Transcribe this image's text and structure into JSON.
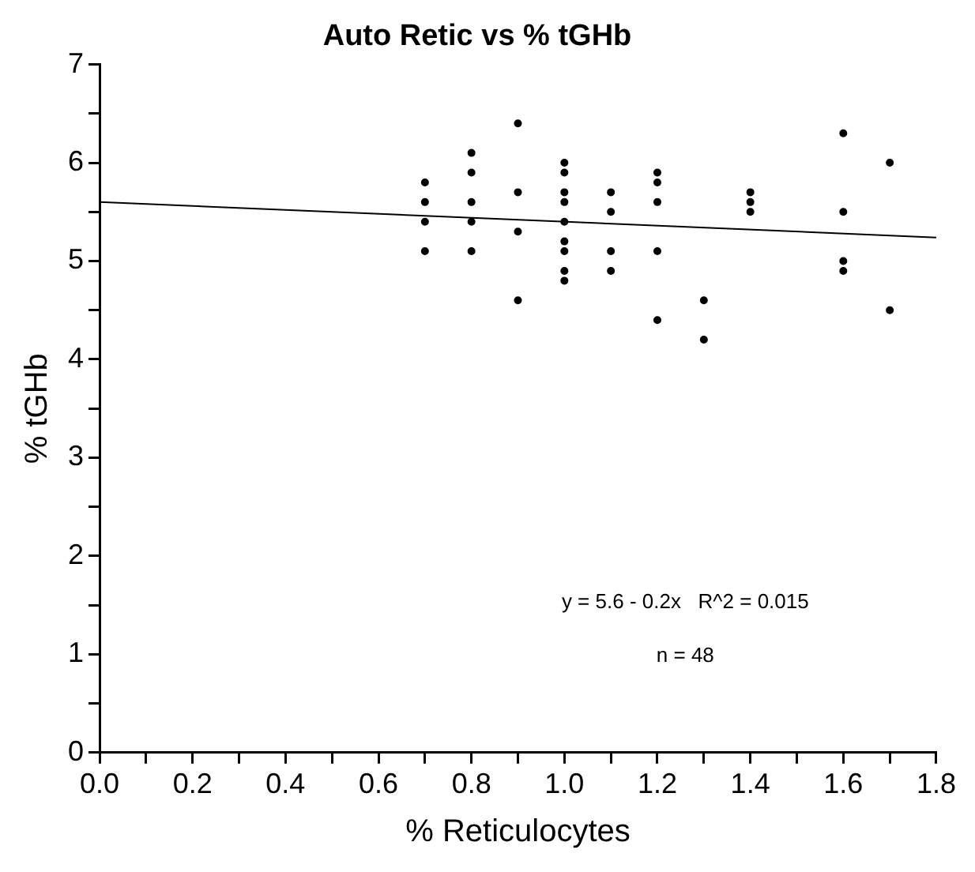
{
  "chart_data": {
    "type": "scatter",
    "title": "Auto Retic vs % tGHb",
    "xlabel": "% Reticulocytes",
    "ylabel": "% tGHb",
    "xlim": [
      0,
      1.8
    ],
    "ylim": [
      0,
      7
    ],
    "xticks": [
      {
        "value": 0,
        "label": "0.0"
      },
      {
        "value": 0.1,
        "label": null
      },
      {
        "value": 0.2,
        "label": "0.2"
      },
      {
        "value": 0.3,
        "label": null
      },
      {
        "value": 0.4,
        "label": "0.4"
      },
      {
        "value": 0.5,
        "label": null
      },
      {
        "value": 0.6,
        "label": "0.6"
      },
      {
        "value": 0.7,
        "label": null
      },
      {
        "value": 0.8,
        "label": "0.8"
      },
      {
        "value": 0.9,
        "label": null
      },
      {
        "value": 1,
        "label": "1.0"
      },
      {
        "value": 1.1,
        "label": null
      },
      {
        "value": 1.2,
        "label": "1.2"
      },
      {
        "value": 1.3,
        "label": null
      },
      {
        "value": 1.4,
        "label": "1.4"
      },
      {
        "value": 1.5,
        "label": null
      },
      {
        "value": 1.6,
        "label": "1.6"
      },
      {
        "value": 1.7,
        "label": null
      },
      {
        "value": 1.8,
        "label": "1.8"
      }
    ],
    "yticks": [
      0,
      {
        "value": 0.5,
        "label": null
      },
      1,
      {
        "value": 1.5,
        "label": null
      },
      2,
      {
        "value": 2.5,
        "label": null
      },
      3,
      {
        "value": 3.5,
        "label": null
      },
      4,
      {
        "value": 4.5,
        "label": null
      },
      5,
      {
        "value": 5.5,
        "label": null
      },
      6,
      {
        "value": 6.5,
        "label": null
      },
      7
    ],
    "grid": false,
    "legend": false,
    "marker": "circle",
    "series": [
      {
        "type": "scatter",
        "color": "#000000",
        "x": [
          0.7,
          0.7,
          0.7,
          0.7,
          0.8,
          0.8,
          0.8,
          0.8,
          0.8,
          0.9,
          0.9,
          0.9,
          0.9,
          1,
          1,
          1,
          1,
          1,
          1,
          1,
          1,
          1,
          1.1,
          1.1,
          1.1,
          1.1,
          1.2,
          1.2,
          1.2,
          1.2,
          1.2,
          1.3,
          1.3,
          1.4,
          1.4,
          1.4,
          1.6,
          1.6,
          1.6,
          1.6,
          1.7,
          1.7
        ],
        "values": [
          5.8,
          5.6,
          5.4,
          5.1,
          6.1,
          5.9,
          5.6,
          5.4,
          5.1,
          6.4,
          5.7,
          5.3,
          4.6,
          6,
          5.9,
          5.7,
          5.6,
          5.4,
          5.2,
          5.1,
          4.9,
          4.8,
          5.7,
          5.5,
          5.1,
          4.9,
          5.9,
          5.8,
          5.6,
          5.1,
          4.4,
          4.6,
          4.2,
          5.7,
          5.6,
          5.5,
          6.3,
          5.5,
          5,
          4.9,
          6,
          4.5
        ]
      },
      {
        "type": "line",
        "color": "#000000",
        "marker": "none",
        "x": [
          0,
          1.8
        ],
        "values": [
          5.6,
          5.24
        ]
      }
    ],
    "annotations": [
      "y = 5.6 - 0.2x   R^2 = 0.015",
      "n = 48"
    ]
  }
}
